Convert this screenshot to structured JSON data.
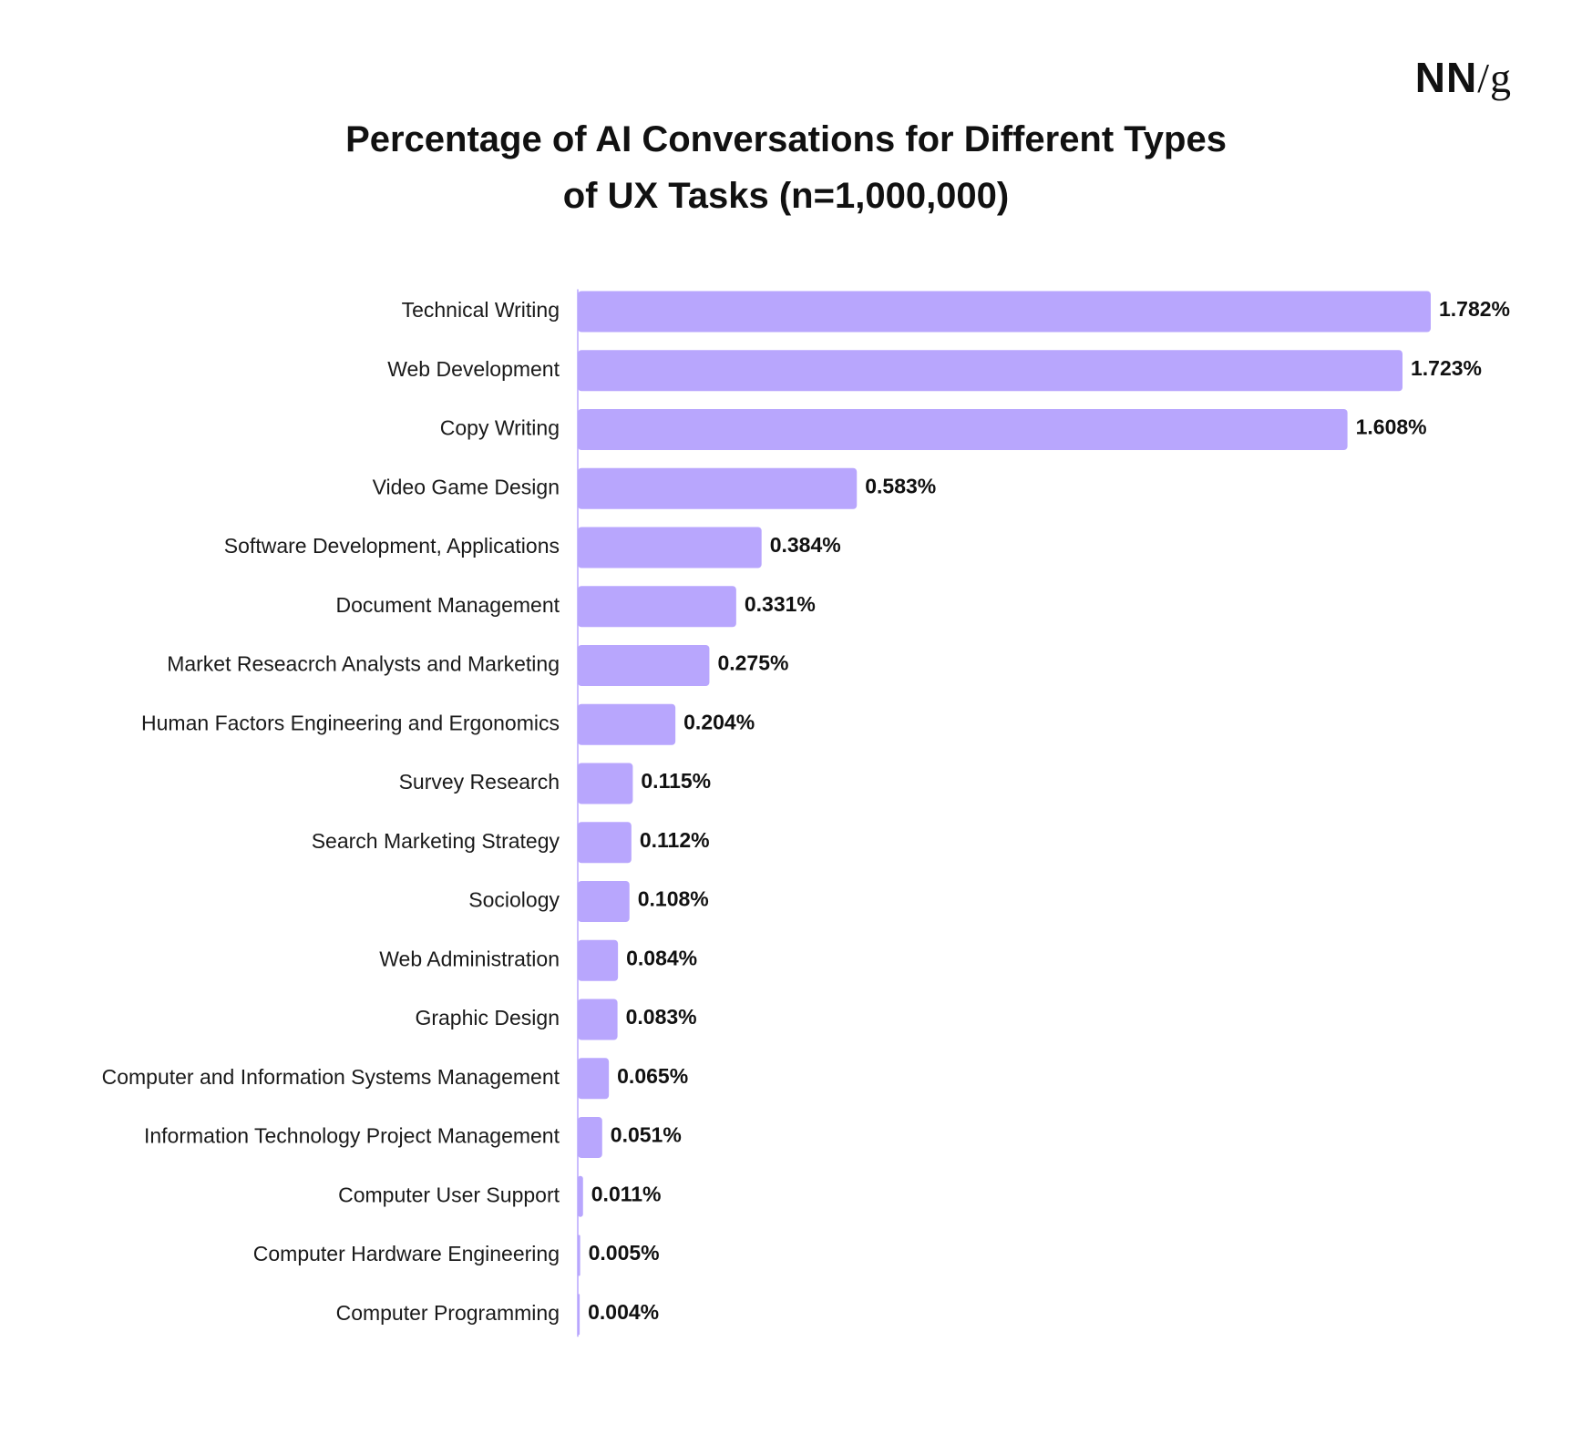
{
  "logo": {
    "brand": "NN",
    "suffix": "/g"
  },
  "chart_data": {
    "type": "bar",
    "orientation": "horizontal",
    "title": "Percentage of AI Conversations for Different Types of UX Tasks (n=1,000,000)",
    "title_lines": [
      "Percentage of AI Conversations for Different Types",
      "of UX Tasks (n=1,000,000)"
    ],
    "categories": [
      "Technical Writing",
      "Web Development",
      "Copy Writing",
      "Video Game Design",
      "Software Development, Applications",
      "Document Management",
      "Market Reseacrch Analysts and Marketing",
      "Human Factors Engineering and Ergonomics",
      "Survey Research",
      "Search Marketing Strategy",
      "Sociology",
      "Web Administration",
      "Graphic Design",
      "Computer and Information Systems Management",
      "Information Technology Project Management",
      "Computer User Support",
      "Computer Hardware Engineering",
      "Computer Programming"
    ],
    "values": [
      1.782,
      1.723,
      1.608,
      0.583,
      0.384,
      0.331,
      0.275,
      0.204,
      0.115,
      0.112,
      0.108,
      0.084,
      0.083,
      0.065,
      0.051,
      0.011,
      0.005,
      0.004
    ],
    "value_labels": [
      "1.782%",
      "1.723%",
      "1.608%",
      "0.583%",
      "0.384%",
      "0.331%",
      "0.275%",
      "0.204%",
      "0.115%",
      "0.112%",
      "0.108%",
      "0.084%",
      "0.083%",
      "0.065%",
      "0.051%",
      "0.011%",
      "0.005%",
      "0.004%"
    ],
    "unit": "%",
    "xlim": [
      0,
      1.782
    ],
    "grid": false,
    "legend": "none",
    "colors": {
      "bar": "#b8a6fd",
      "axis": "#b8a6fd",
      "text": "#111111"
    }
  }
}
